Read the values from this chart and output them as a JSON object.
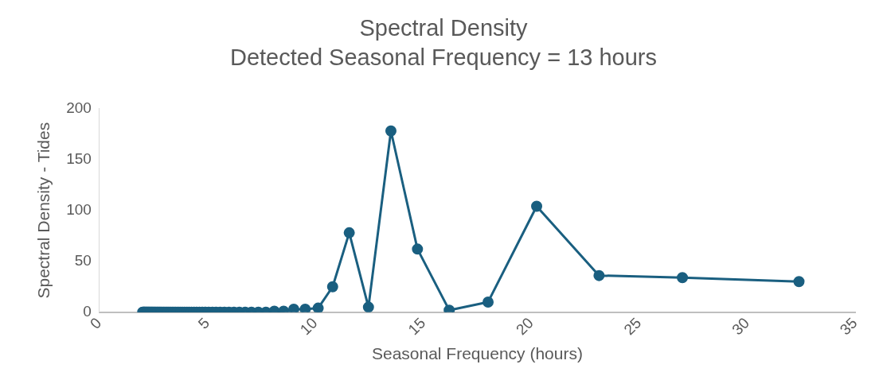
{
  "chart_data": {
    "type": "line",
    "title": "Spectral Density",
    "subtitle": "Detected Seasonal Frequency = 13 hours",
    "xlabel": "Seasonal Frequency (hours)",
    "ylabel": "Spectral Density - Tides",
    "x": [
      2.0,
      2.03,
      2.05,
      2.08,
      2.1,
      2.13,
      2.16,
      2.19,
      2.22,
      2.25,
      2.28,
      2.31,
      2.35,
      2.38,
      2.42,
      2.45,
      2.49,
      2.53,
      2.57,
      2.61,
      2.66,
      2.7,
      2.75,
      2.79,
      2.84,
      2.89,
      2.95,
      3.0,
      3.06,
      3.12,
      3.18,
      3.24,
      3.31,
      3.38,
      3.45,
      3.52,
      3.6,
      3.68,
      3.77,
      3.86,
      3.95,
      4.05,
      4.15,
      4.26,
      4.38,
      4.5,
      4.63,
      4.76,
      4.91,
      5.06,
      5.23,
      5.4,
      5.59,
      5.79,
      6.0,
      6.23,
      6.48,
      6.75,
      7.04,
      7.36,
      7.71,
      8.1,
      8.53,
      9.0,
      9.53,
      10.13,
      10.8,
      11.57,
      12.46,
      13.5,
      14.73,
      16.2,
      18.0,
      20.25,
      23.14,
      27.0,
      32.4
    ],
    "series": [
      {
        "color": "#1a5f80",
        "values": [
          0,
          0,
          0,
          0,
          0,
          0,
          0,
          0,
          0,
          0,
          0,
          0,
          0,
          0,
          0,
          0,
          0,
          0,
          0,
          0,
          0,
          0,
          0,
          0,
          0,
          0,
          0,
          0,
          0,
          0,
          0,
          0,
          0,
          0,
          0,
          0,
          0,
          0,
          0,
          0,
          0,
          0,
          0,
          0,
          0,
          0,
          0,
          0,
          0,
          0,
          0,
          0,
          0,
          0,
          0,
          0,
          0,
          0,
          0,
          0,
          0,
          1,
          1,
          3,
          3,
          4,
          25,
          78,
          5,
          178,
          62,
          2,
          10,
          104,
          36,
          34,
          30
        ]
      }
    ],
    "xlim": [
      0,
      35
    ],
    "xticks": [
      0,
      5,
      10,
      15,
      20,
      25,
      30,
      35
    ],
    "ylim": [
      0,
      200
    ],
    "yticks": [
      0,
      50,
      100,
      150,
      200
    ],
    "grid": false,
    "legend": false,
    "marker": "circle",
    "line_style": "solid"
  }
}
